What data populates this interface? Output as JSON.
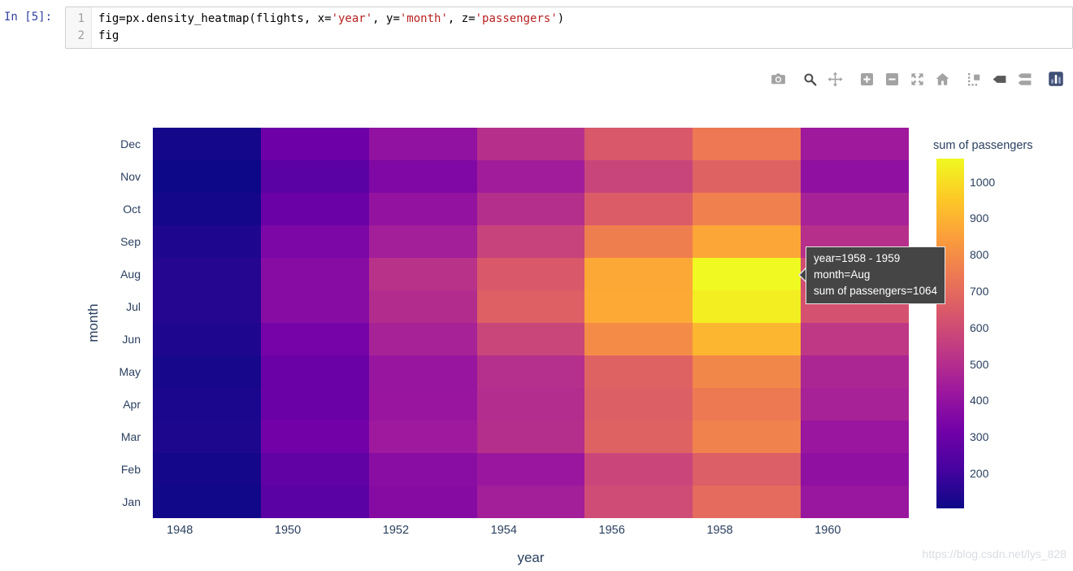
{
  "notebook": {
    "prompt": "In [5]:",
    "line_numbers": [
      "1",
      "2"
    ],
    "code_lines": [
      {
        "tokens": [
          {
            "text": "fig=px.density_heatmap(flights, x=",
            "type": "plain"
          },
          {
            "text": "'year'",
            "type": "string"
          },
          {
            "text": ", y=",
            "type": "plain"
          },
          {
            "text": "'month'",
            "type": "string"
          },
          {
            "text": ", z=",
            "type": "plain"
          },
          {
            "text": "'passengers'",
            "type": "string"
          },
          {
            "text": ")",
            "type": "plain"
          }
        ]
      },
      {
        "tokens": [
          {
            "text": "fig",
            "type": "plain"
          }
        ]
      }
    ]
  },
  "modebar": {
    "icons": [
      {
        "name": "camera-icon",
        "group_start": false
      },
      {
        "name": "zoom-icon",
        "group_start": true
      },
      {
        "name": "pan-icon",
        "group_start": false
      },
      {
        "name": "zoom-in-icon",
        "group_start": true
      },
      {
        "name": "zoom-out-icon",
        "group_start": false
      },
      {
        "name": "autoscale-icon",
        "group_start": false
      },
      {
        "name": "reset-axes-icon",
        "group_start": false
      },
      {
        "name": "spikelines-icon",
        "group_start": true
      },
      {
        "name": "hover-closest-icon",
        "group_start": false
      },
      {
        "name": "hover-compare-icon",
        "group_start": false
      },
      {
        "name": "plotly-logo-icon",
        "group_start": true
      }
    ]
  },
  "tooltip": {
    "lines": [
      "year=1958 - 1959",
      "month=Aug",
      "sum of passengers=1064"
    ]
  },
  "watermark": "https://blog.csdn.net/lys_828",
  "chart_data": {
    "type": "heatmap",
    "xlabel": "year",
    "ylabel": "month",
    "colorbar_title": "sum of passengers",
    "colorscale": "Plasma",
    "legend_position": "right-colorbar",
    "grid": false,
    "x_bins": [
      "1948-1949",
      "1950-1951",
      "1952-1953",
      "1954-1955",
      "1956-1957",
      "1958-1959",
      "1960-1961"
    ],
    "x_ticks": [
      1948,
      1950,
      1952,
      1954,
      1956,
      1958,
      1960
    ],
    "x_range": [
      1947.5,
      1961.5
    ],
    "y_categories": [
      "Jan",
      "Feb",
      "Mar",
      "Apr",
      "May",
      "Jun",
      "Jul",
      "Aug",
      "Sep",
      "Oct",
      "Nov",
      "Dec"
    ],
    "zmin": 104,
    "zmax": 1064,
    "colorbar_ticks": [
      200,
      300,
      400,
      500,
      600,
      700,
      800,
      900,
      1000
    ],
    "values": [
      [
        112,
        260,
        367,
        446,
        599,
        700,
        417
      ],
      [
        118,
        276,
        376,
        421,
        578,
        660,
        391
      ],
      [
        132,
        319,
        429,
        502,
        673,
        768,
        419
      ],
      [
        129,
        298,
        416,
        496,
        661,
        744,
        461
      ],
      [
        121,
        297,
        412,
        504,
        673,
        783,
        472
      ],
      [
        135,
        327,
        461,
        579,
        796,
        907,
        535
      ],
      [
        148,
        369,
        494,
        666,
        878,
        1039,
        622
      ],
      [
        148,
        369,
        514,
        640,
        872,
        1064,
        606
      ],
      [
        136,
        342,
        446,
        571,
        759,
        867,
        508
      ],
      [
        119,
        295,
        402,
        503,
        653,
        766,
        461
      ],
      [
        104,
        260,
        352,
        440,
        576,
        672,
        390
      ],
      [
        118,
        306,
        395,
        507,
        642,
        742,
        432
      ]
    ]
  }
}
